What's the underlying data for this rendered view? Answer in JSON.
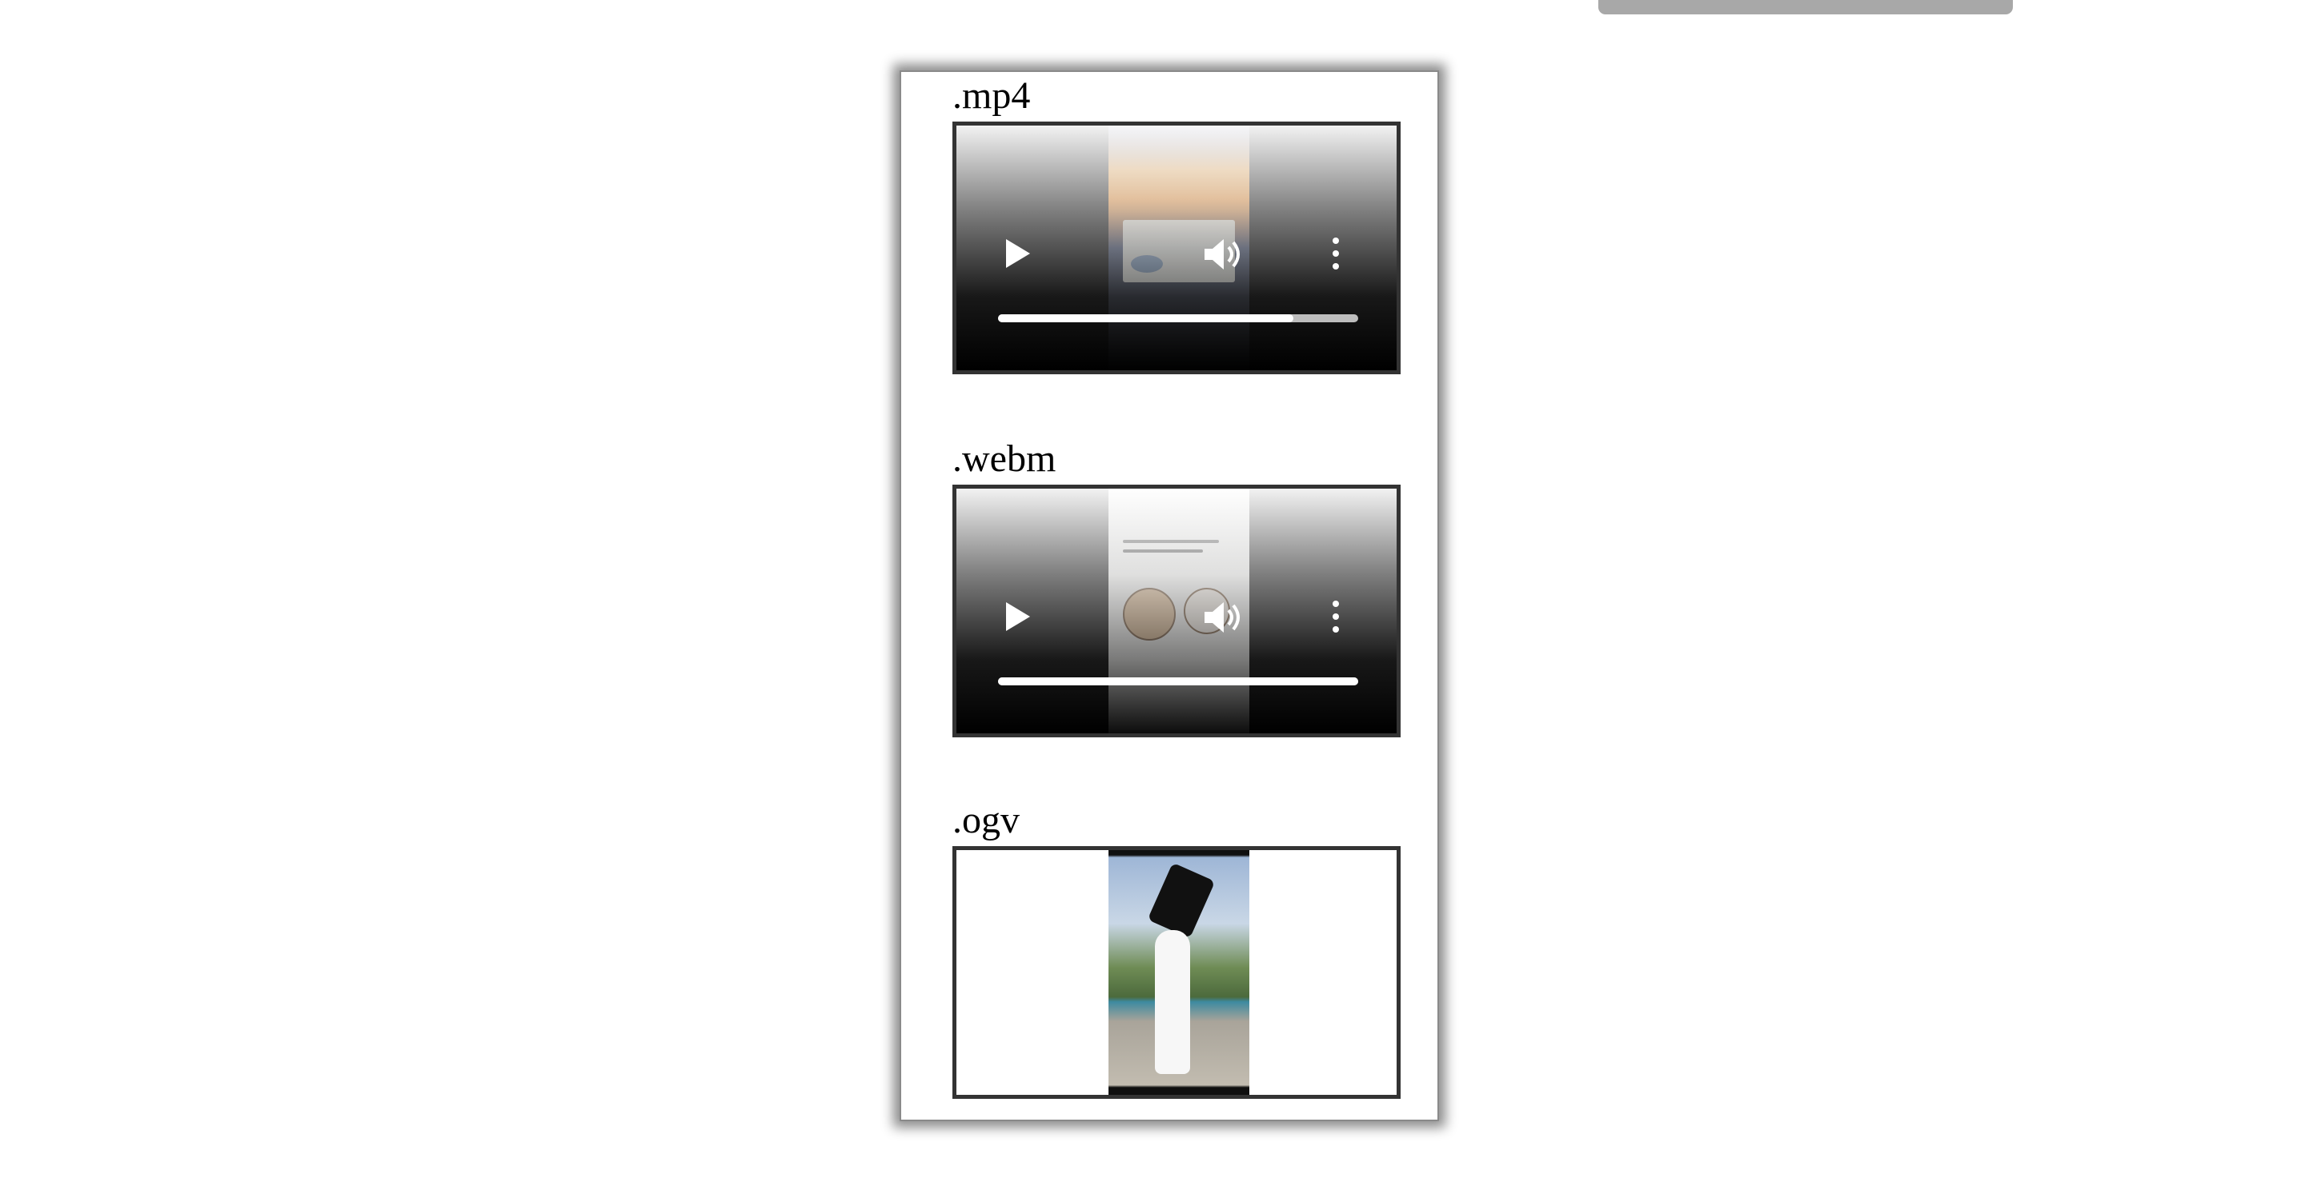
{
  "videos": [
    {
      "label": ".mp4",
      "has_controls": true,
      "progress": 0.82,
      "thumbnail": "sunset-with-note"
    },
    {
      "label": ".webm",
      "has_controls": true,
      "progress": 1.0,
      "thumbnail": "cute-bear-and-cat"
    },
    {
      "label": ".ogv",
      "has_controls": false,
      "thumbnail": "person-with-bag-outdoors"
    }
  ],
  "icons": {
    "play": "play-icon",
    "volume": "volume-icon",
    "menu": "more-vertical-icon"
  },
  "colors": {
    "frame_border": "#333333",
    "card_shadow": "#8a8a8a",
    "top_bar": "#a8a8a8"
  }
}
